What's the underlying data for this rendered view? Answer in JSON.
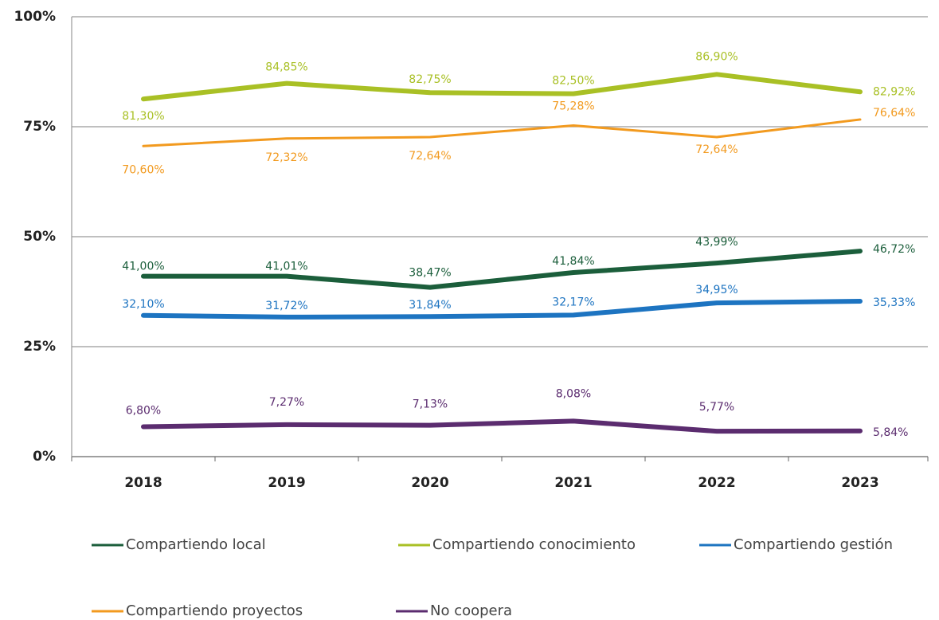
{
  "chart_data": {
    "type": "line",
    "categories": [
      "2018",
      "2019",
      "2020",
      "2021",
      "2022",
      "2023"
    ],
    "ylim": [
      0,
      100
    ],
    "yticks": [
      {
        "value": 0,
        "label": "0%"
      },
      {
        "value": 25,
        "label": "25%"
      },
      {
        "value": 50,
        "label": "50%"
      },
      {
        "value": 75,
        "label": "75%"
      },
      {
        "value": 100,
        "label": "100%"
      }
    ],
    "grid": true,
    "series": [
      {
        "name": "Compartiendo local",
        "color": "#1b5e3b",
        "values": [
          41.0,
          41.01,
          38.47,
          41.84,
          43.99,
          46.72
        ],
        "value_labels": [
          "41,00%",
          "41,01%",
          "38,47%",
          "41,84%",
          "43,99%",
          "46,72%"
        ]
      },
      {
        "name": "Compartiendo conocimiento",
        "color": "#a9c025",
        "values": [
          81.3,
          84.85,
          82.75,
          82.5,
          86.9,
          82.92
        ],
        "value_labels": [
          "81,30%",
          "84,85%",
          "82,75%",
          "82,50%",
          "86,90%",
          "82,92%"
        ]
      },
      {
        "name": "Compartiendo gestión",
        "color": "#1d74c1",
        "values": [
          32.1,
          31.72,
          31.84,
          32.17,
          34.95,
          35.33
        ],
        "value_labels": [
          "32,10%",
          "31,72%",
          "31,84%",
          "32,17%",
          "34,95%",
          "35,33%"
        ]
      },
      {
        "name": "Compartiendo proyectos",
        "color": "#f29a1f",
        "values": [
          70.6,
          72.32,
          72.64,
          75.28,
          72.64,
          76.64
        ],
        "value_labels": [
          "70,60%",
          "72,32%",
          "72,64%",
          "75,28%",
          "72,64%",
          "76,64%"
        ]
      },
      {
        "name": "No coopera",
        "color": "#5b2c6f",
        "values": [
          6.8,
          7.27,
          7.13,
          8.08,
          5.77,
          5.84
        ],
        "value_labels": [
          "6,80%",
          "7,27%",
          "7,13%",
          "8,08%",
          "5,77%",
          "5,84%"
        ]
      }
    ]
  }
}
